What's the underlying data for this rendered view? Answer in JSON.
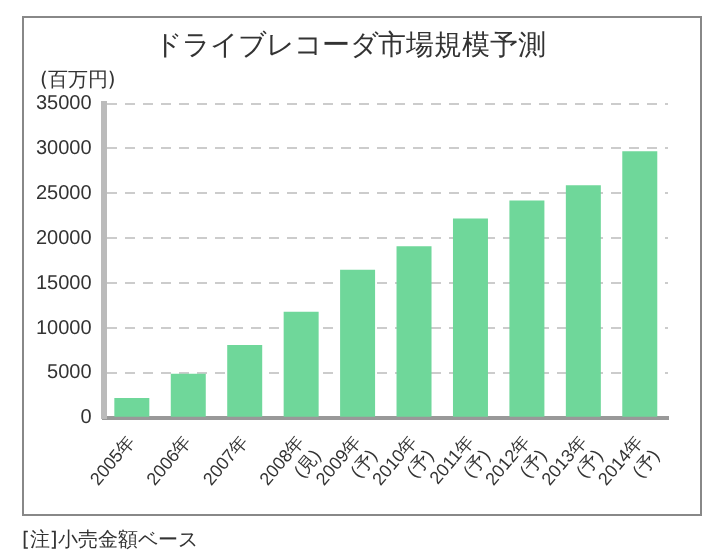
{
  "chart_data": {
    "type": "bar",
    "title": "ドライブレコーダ市場規模予測",
    "ylabel": "(百万円)",
    "categories": [
      "2005年",
      "2006年",
      "2007年",
      "2008年(見)",
      "2009年(予)",
      "2010年(予)",
      "2011年(予)",
      "2012年(予)",
      "2013年(予)",
      "2014年(予)"
    ],
    "values": [
      2200,
      4900,
      8100,
      11800,
      16500,
      19100,
      22200,
      24200,
      25900,
      29700
    ],
    "color": "#6fd79a",
    "ylim": [
      0,
      35000
    ],
    "yticks": [
      0,
      5000,
      10000,
      15000,
      20000,
      25000,
      30000,
      35000
    ],
    "grid": "y",
    "annotations": [
      "[注]小売金額ベース"
    ]
  }
}
